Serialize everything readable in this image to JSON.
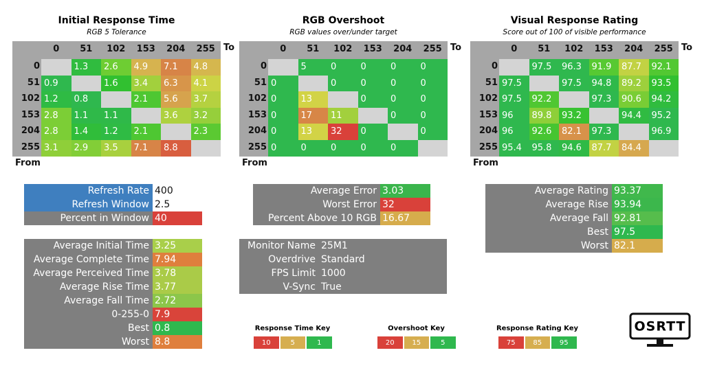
{
  "panels": [
    {
      "title": "Initial Response Time",
      "subtitle": "RGB 5 Tolerance",
      "to_label": "To",
      "from_label": "From",
      "key": 0,
      "columns": [
        0,
        51,
        102,
        153,
        204,
        255
      ],
      "rows": [
        0,
        51,
        102,
        153,
        204,
        255
      ],
      "cells": [
        [
          null,
          1.3,
          2.6,
          4.9,
          7.1,
          4.8
        ],
        [
          0.9,
          null,
          1.6,
          3.4,
          6.3,
          4.1
        ],
        [
          1.2,
          0.8,
          null,
          2.1,
          5.6,
          3.7
        ],
        [
          2.8,
          1.1,
          1.1,
          null,
          3.6,
          3.2
        ],
        [
          2.8,
          1.4,
          1.2,
          2.1,
          null,
          2.3
        ],
        [
          3.1,
          2.9,
          3.5,
          7.1,
          8.8,
          null
        ]
      ]
    },
    {
      "title": "RGB Overshoot",
      "subtitle": "RGB values over/under target",
      "to_label": "To",
      "from_label": "From",
      "key": 1,
      "columns": [
        0,
        51,
        102,
        153,
        204,
        255
      ],
      "rows": [
        0,
        51,
        102,
        153,
        204,
        255
      ],
      "cells": [
        [
          null,
          5,
          0,
          0,
          0,
          0
        ],
        [
          0,
          null,
          0,
          0,
          0,
          0
        ],
        [
          0,
          13,
          null,
          0,
          0,
          0
        ],
        [
          0,
          17,
          11,
          null,
          0,
          0
        ],
        [
          0,
          13,
          32,
          0,
          null,
          0
        ],
        [
          0,
          0,
          0,
          0,
          0,
          null
        ]
      ]
    },
    {
      "title": "Visual Response Rating",
      "subtitle": "Score out of 100 of visible performance",
      "to_label": "To",
      "from_label": "From",
      "key": 2,
      "columns": [
        0,
        51,
        102,
        153,
        204,
        255
      ],
      "rows": [
        0,
        51,
        102,
        153,
        204,
        255
      ],
      "cells": [
        [
          null,
          97.5,
          96.3,
          91.9,
          87.7,
          92.1
        ],
        [
          97.5,
          null,
          97.5,
          94.8,
          89.2,
          93.5
        ],
        [
          97.5,
          92.2,
          null,
          97.3,
          90.6,
          94.2
        ],
        [
          96,
          89.8,
          93.2,
          null,
          94.4,
          95.2
        ],
        [
          96,
          92.6,
          82.1,
          97.3,
          null,
          96.9
        ],
        [
          95.4,
          95.8,
          94.6,
          87.7,
          84.4,
          null
        ]
      ]
    }
  ],
  "stat_boxes": [
    {
      "rows": [
        {
          "label": "Refresh Rate",
          "value": 400,
          "background": "#3f7fbf",
          "color": "#ffffff"
        },
        {
          "label": "Refresh Window",
          "value": 2.5,
          "background": "#3f7fbf",
          "color": "#ffffff"
        },
        {
          "label": "Percent in Window",
          "value": 40,
          "color": "#d9413a"
        }
      ]
    },
    {
      "rows": [
        {
          "label": "Average Initial Time",
          "value": 3.25,
          "color": "#a9cf4a"
        },
        {
          "label": "Average Complete Time",
          "value": 7.94,
          "color": "#df7f3d"
        },
        {
          "label": "Average Perceived Time",
          "value": 3.78,
          "color": "#aacb48"
        },
        {
          "label": "Average Rise Time",
          "value": 3.77,
          "color": "#aacb48"
        },
        {
          "label": "Average Fall Time",
          "value": 2.72,
          "color": "#8cc64a"
        },
        {
          "label": "0-255-0",
          "value": 7.9,
          "color": "#d9443a"
        },
        {
          "label": "Best",
          "value": 0.8,
          "color": "#2fb84e"
        },
        {
          "label": "Worst",
          "value": 8.8,
          "color": "#df7f3d"
        }
      ]
    },
    {
      "rows": [
        {
          "label": "Average Error",
          "value": 3.03,
          "color": "#3bb54c"
        },
        {
          "label": "Worst Error",
          "value": 32,
          "color": "#d9413a"
        },
        {
          "label": "Percent Above 10 RGB",
          "value": 16.67,
          "color": "#d6ac4c"
        }
      ]
    },
    {
      "rows": [
        {
          "label": "Monitor Name",
          "value": "25M1"
        },
        {
          "label": "Overdrive",
          "value": "Standard"
        },
        {
          "label": "FPS Limit",
          "value": 1000
        },
        {
          "label": "V-Sync",
          "value": "True"
        }
      ]
    },
    {
      "rows": [
        {
          "label": "Average Rating",
          "value": 93.37,
          "color": "#40b84c"
        },
        {
          "label": "Average Rise",
          "value": 93.94,
          "color": "#3cb74c"
        },
        {
          "label": "Average Fall",
          "value": 92.81,
          "color": "#56bd4c"
        },
        {
          "label": "Best",
          "value": 97.5,
          "color": "#2fb84e"
        },
        {
          "label": "Worst",
          "value": 82.1,
          "color": "#d6ac4c"
        }
      ]
    }
  ],
  "keys": [
    {
      "title": "Response Time Key",
      "items": [
        {
          "value": 10,
          "color": "#d9413a"
        },
        {
          "value": 5,
          "color": "#d6ae50"
        },
        {
          "value": 1,
          "color": "#2fb84e"
        }
      ]
    },
    {
      "title": "Overshoot Key",
      "items": [
        {
          "value": 20,
          "color": "#d9413a"
        },
        {
          "value": 15,
          "color": "#d6ae50"
        },
        {
          "value": 5,
          "color": "#2fb84e"
        }
      ]
    },
    {
      "title": "Response Rating Key",
      "items": [
        {
          "value": 75,
          "color": "#d9413a"
        },
        {
          "value": 85,
          "color": "#d6ae50"
        },
        {
          "value": 95,
          "color": "#2fb84e"
        }
      ]
    }
  ],
  "logo": {
    "text": "OSRTT"
  }
}
